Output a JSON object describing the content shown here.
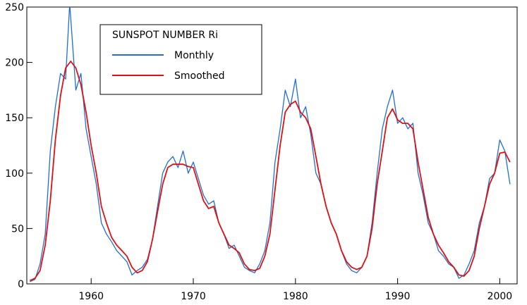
{
  "chart_data": {
    "type": "line",
    "title": "",
    "xlabel": "",
    "ylabel": "",
    "xlim": [
      1953.7,
      2001.7
    ],
    "ylim": [
      0,
      250
    ],
    "x_ticks": [
      1960,
      1970,
      1980,
      1990,
      2000
    ],
    "y_ticks": [
      0,
      50,
      100,
      150,
      200,
      250
    ],
    "grid": false,
    "legend": {
      "title": "SUNSPOT NUMBER Ri",
      "placement": "top-left",
      "entries": [
        {
          "label": "Monthly",
          "color": "#1f6fd6"
        },
        {
          "label": "Smoothed",
          "color": "#e01010"
        }
      ]
    },
    "series": [
      {
        "name": "Monthly",
        "color": "#1f6fd6",
        "x": [
          1954.0,
          1954.5,
          1955.0,
          1955.5,
          1956.0,
          1956.5,
          1957.0,
          1957.5,
          1957.9,
          1958.5,
          1959.0,
          1959.5,
          1960.0,
          1960.5,
          1961.0,
          1961.5,
          1962.0,
          1962.5,
          1963.0,
          1963.5,
          1964.0,
          1964.5,
          1965.0,
          1965.5,
          1966.0,
          1966.5,
          1967.0,
          1967.5,
          1968.0,
          1968.5,
          1969.0,
          1969.5,
          1970.0,
          1970.5,
          1971.0,
          1971.5,
          1972.0,
          1972.5,
          1973.0,
          1973.5,
          1974.0,
          1974.5,
          1975.0,
          1975.5,
          1976.0,
          1976.5,
          1977.0,
          1977.5,
          1978.0,
          1978.5,
          1979.0,
          1979.5,
          1980.0,
          1980.5,
          1981.0,
          1981.5,
          1982.0,
          1982.5,
          1983.0,
          1983.5,
          1984.0,
          1984.5,
          1985.0,
          1985.5,
          1986.0,
          1986.5,
          1987.0,
          1987.5,
          1988.0,
          1988.5,
          1989.0,
          1989.5,
          1990.0,
          1990.5,
          1991.0,
          1991.5,
          1992.0,
          1992.5,
          1993.0,
          1993.5,
          1994.0,
          1994.5,
          1995.0,
          1995.5,
          1996.0,
          1996.5,
          1997.0,
          1997.5,
          1998.0,
          1998.5,
          1999.0,
          1999.5,
          2000.0,
          2000.5,
          2001.0
        ],
        "values": [
          2,
          4,
          18,
          45,
          120,
          160,
          190,
          185,
          253,
          175,
          190,
          140,
          115,
          90,
          55,
          45,
          38,
          30,
          25,
          20,
          8,
          12,
          15,
          22,
          40,
          70,
          100,
          110,
          115,
          105,
          120,
          100,
          110,
          95,
          80,
          72,
          75,
          55,
          45,
          32,
          35,
          25,
          15,
          12,
          10,
          18,
          30,
          55,
          110,
          140,
          175,
          160,
          185,
          150,
          160,
          135,
          100,
          90,
          70,
          55,
          45,
          30,
          18,
          12,
          10,
          15,
          25,
          55,
          100,
          140,
          160,
          175,
          145,
          150,
          140,
          145,
          100,
          80,
          55,
          45,
          30,
          25,
          18,
          15,
          5,
          8,
          18,
          30,
          55,
          70,
          95,
          100,
          130,
          120,
          90
        ]
      },
      {
        "name": "Smoothed",
        "color": "#e01010",
        "x": [
          1954.0,
          1954.5,
          1955.0,
          1955.5,
          1956.0,
          1956.5,
          1957.0,
          1957.5,
          1958.0,
          1958.5,
          1959.0,
          1959.5,
          1960.0,
          1960.5,
          1961.0,
          1961.5,
          1962.0,
          1962.5,
          1963.0,
          1963.5,
          1964.0,
          1964.5,
          1965.0,
          1965.5,
          1966.0,
          1966.5,
          1967.0,
          1967.5,
          1968.0,
          1968.5,
          1969.0,
          1969.5,
          1970.0,
          1970.5,
          1971.0,
          1971.5,
          1972.0,
          1972.5,
          1973.0,
          1973.5,
          1974.0,
          1974.5,
          1975.0,
          1975.5,
          1976.0,
          1976.5,
          1977.0,
          1977.5,
          1978.0,
          1978.5,
          1979.0,
          1979.5,
          1980.0,
          1980.5,
          1981.0,
          1981.5,
          1982.0,
          1982.5,
          1983.0,
          1983.5,
          1984.0,
          1984.5,
          1985.0,
          1985.5,
          1986.0,
          1986.5,
          1987.0,
          1987.5,
          1988.0,
          1988.5,
          1989.0,
          1989.5,
          1990.0,
          1990.5,
          1991.0,
          1991.5,
          1992.0,
          1992.5,
          1993.0,
          1993.5,
          1994.0,
          1994.5,
          1995.0,
          1995.5,
          1996.0,
          1996.5,
          1997.0,
          1997.5,
          1998.0,
          1998.5,
          1999.0,
          1999.5,
          2000.0,
          2000.5,
          2001.0
        ],
        "values": [
          3,
          5,
          12,
          35,
          75,
          130,
          170,
          195,
          201,
          195,
          180,
          155,
          125,
          100,
          70,
          55,
          42,
          35,
          30,
          25,
          15,
          10,
          12,
          20,
          40,
          65,
          90,
          105,
          108,
          108,
          108,
          106,
          105,
          90,
          75,
          68,
          70,
          55,
          45,
          35,
          32,
          28,
          18,
          13,
          12,
          14,
          25,
          45,
          85,
          125,
          155,
          162,
          165,
          155,
          150,
          140,
          115,
          90,
          70,
          55,
          45,
          30,
          20,
          15,
          13,
          15,
          25,
          50,
          90,
          120,
          150,
          158,
          148,
          145,
          145,
          140,
          110,
          85,
          60,
          45,
          35,
          28,
          20,
          15,
          8,
          7,
          12,
          25,
          50,
          70,
          90,
          100,
          118,
          119,
          110
        ]
      }
    ]
  }
}
